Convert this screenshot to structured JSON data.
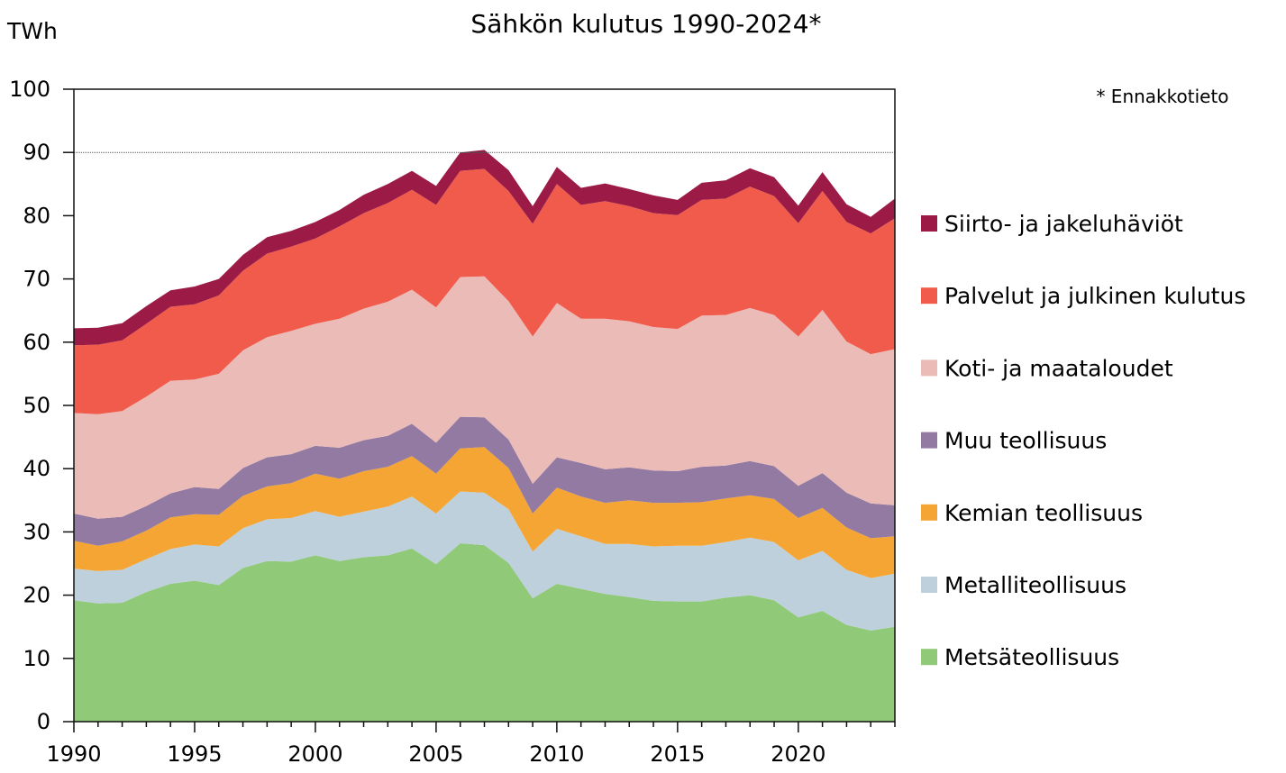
{
  "chart_data": {
    "type": "area",
    "stacked": true,
    "title": "Sähkön kulutus 1990-2024*",
    "ylabel": "TWh",
    "note": "* Ennakkotieto",
    "xlim": [
      1990,
      2024
    ],
    "ylim": [
      0,
      100
    ],
    "x_ticks": [
      1990,
      1995,
      2000,
      2005,
      2010,
      2015,
      2020
    ],
    "y_ticks": [
      0,
      10,
      20,
      30,
      40,
      50,
      60,
      70,
      80,
      90,
      100
    ],
    "gridlines": [
      90
    ],
    "legend_position": "right",
    "x": [
      1990,
      1991,
      1992,
      1993,
      1994,
      1995,
      1996,
      1997,
      1998,
      1999,
      2000,
      2001,
      2002,
      2003,
      2004,
      2005,
      2006,
      2007,
      2008,
      2009,
      2010,
      2011,
      2012,
      2013,
      2014,
      2015,
      2016,
      2017,
      2018,
      2019,
      2020,
      2021,
      2022,
      2023,
      2024
    ],
    "series": [
      {
        "name": "Metsäteollisuus",
        "color": "#90c978",
        "values": [
          19.2,
          18.7,
          18.8,
          20.5,
          21.8,
          22.3,
          21.6,
          24.3,
          25.4,
          25.3,
          26.3,
          25.4,
          26.0,
          26.3,
          27.4,
          24.9,
          28.2,
          27.9,
          25.1,
          19.5,
          21.8,
          21.0,
          20.2,
          19.7,
          19.1,
          19.0,
          19.0,
          19.6,
          20.0,
          19.2,
          16.5,
          17.5,
          15.3,
          14.4,
          15.0
        ]
      },
      {
        "name": "Metalliteollisuus",
        "color": "#bdd0dc",
        "values": [
          5.0,
          5.1,
          5.2,
          5.2,
          5.5,
          5.7,
          6.1,
          6.3,
          6.6,
          6.9,
          7.0,
          7.0,
          7.2,
          7.7,
          8.2,
          8.0,
          8.2,
          8.3,
          8.5,
          7.4,
          8.7,
          8.3,
          7.9,
          8.4,
          8.6,
          8.8,
          8.8,
          8.8,
          9.1,
          9.2,
          9.0,
          9.5,
          8.7,
          8.3,
          8.4
        ]
      },
      {
        "name": "Kemian teollisuus",
        "color": "#f5a533",
        "values": [
          4.4,
          4.0,
          4.5,
          4.5,
          5.0,
          4.8,
          5.0,
          5.1,
          5.2,
          5.5,
          5.9,
          6.0,
          6.4,
          6.3,
          6.4,
          6.3,
          6.8,
          7.2,
          6.5,
          6.0,
          6.5,
          6.3,
          6.5,
          6.9,
          6.9,
          6.8,
          6.9,
          6.9,
          6.7,
          6.8,
          6.7,
          6.8,
          6.7,
          6.3,
          5.9
        ]
      },
      {
        "name": "Muu teollisuus",
        "color": "#937aa2",
        "values": [
          4.3,
          4.3,
          3.9,
          3.9,
          3.8,
          4.3,
          4.1,
          4.4,
          4.6,
          4.6,
          4.4,
          4.9,
          4.9,
          4.9,
          5.1,
          4.9,
          5.0,
          4.7,
          4.5,
          4.7,
          4.8,
          5.3,
          5.3,
          5.2,
          5.1,
          5.0,
          5.6,
          5.2,
          5.4,
          5.2,
          5.1,
          5.5,
          5.5,
          5.5,
          4.9
        ]
      },
      {
        "name": "Koti- ja maataloudet",
        "color": "#ebbbb8",
        "values": [
          15.9,
          16.5,
          16.7,
          17.3,
          17.8,
          17.0,
          18.2,
          18.6,
          19.0,
          19.5,
          19.3,
          20.4,
          20.8,
          21.2,
          21.2,
          21.4,
          22.1,
          22.3,
          21.9,
          23.3,
          24.4,
          22.8,
          23.8,
          23.1,
          22.7,
          22.5,
          23.9,
          23.8,
          24.2,
          23.9,
          23.6,
          25.8,
          23.9,
          23.6,
          24.7
        ]
      },
      {
        "name": "Palvelut ja julkinen kulutus",
        "color": "#f05b4b",
        "values": [
          10.7,
          11.0,
          11.2,
          11.5,
          11.7,
          11.9,
          12.4,
          12.6,
          13.2,
          13.3,
          13.5,
          14.6,
          15.1,
          15.6,
          15.8,
          16.2,
          16.8,
          17.0,
          17.4,
          17.8,
          18.8,
          18.0,
          18.6,
          18.2,
          18.0,
          18.0,
          18.3,
          18.4,
          19.2,
          18.8,
          17.9,
          18.8,
          18.9,
          19.1,
          20.7
        ]
      },
      {
        "name": "Siirto- ja jakeluhäviöt",
        "color": "#9b1b46",
        "values": [
          2.7,
          2.7,
          2.7,
          2.8,
          2.6,
          2.8,
          2.6,
          2.5,
          2.6,
          2.5,
          2.6,
          2.6,
          2.9,
          3.0,
          3.0,
          3.0,
          2.9,
          3.0,
          3.3,
          2.8,
          2.7,
          2.7,
          2.8,
          2.7,
          2.8,
          2.4,
          2.7,
          2.9,
          2.9,
          3.0,
          2.8,
          3.0,
          2.8,
          2.6,
          3.1
        ]
      }
    ]
  }
}
